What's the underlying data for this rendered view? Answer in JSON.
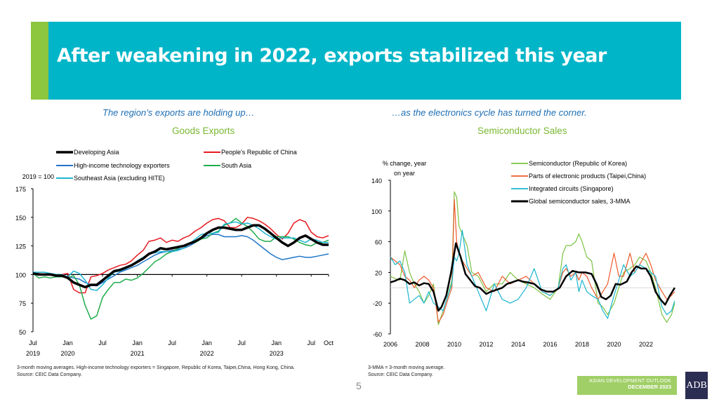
{
  "slide": {
    "title": "After weakening in 2022, exports stabilized this year",
    "page_number": "5",
    "badge": {
      "line1": "ASIAN DEVELOPMENT OUTLOOK",
      "line2": "DECEMBER 2023"
    },
    "logo": "ADB",
    "colors": {
      "title_bg": "#00b5c8",
      "accent": "#8dc63f",
      "subtitle": "#1f6fb4",
      "chart_title": "#7ab833",
      "badge_bg": "#a0cf67",
      "logo_bg": "#2b2d52"
    }
  },
  "left": {
    "subtitle": "The region’s exports are holding up…",
    "notes": [
      "3-month moving averages. High-income technology exporters = Singapore, Republic of Korea, Taipei,China, Hong Kong, China.",
      "Source: CEIC Data Company."
    ]
  },
  "right": {
    "subtitle": "…as the electronics cycle has turned the corner.",
    "notes": [
      "3-MMA = 3-month moving average.",
      "Source: CEIC Data Company."
    ]
  },
  "chart_data": [
    {
      "type": "line",
      "title": "Goods Exports",
      "ylabel": "2019 = 100",
      "xlabel": "",
      "ylim": [
        50,
        175
      ],
      "yticks": [
        "50",
        "75",
        "100",
        "125",
        "150",
        "175"
      ],
      "xticks": [
        {
          "month": 0,
          "line1": "Jul",
          "line2": "2019"
        },
        {
          "month": 6,
          "line1": "Jan",
          "line2": "2020"
        },
        {
          "month": 12,
          "line1": "Jul",
          "line2": ""
        },
        {
          "month": 18,
          "line1": "Jan",
          "line2": "2021"
        },
        {
          "month": 24,
          "line1": "Jul",
          "line2": ""
        },
        {
          "month": 30,
          "line1": "Jan",
          "line2": "2022"
        },
        {
          "month": 36,
          "line1": "Jul",
          "line2": ""
        },
        {
          "month": 42,
          "line1": "Jan",
          "line2": "2023"
        },
        {
          "month": 48,
          "line1": "Jul",
          "line2": ""
        },
        {
          "month": 51,
          "line1": "Oct",
          "line2": ""
        }
      ],
      "x_unit": "months since Jul 2019",
      "x": [
        0,
        1,
        2,
        3,
        4,
        5,
        6,
        7,
        8,
        9,
        10,
        11,
        12,
        13,
        14,
        15,
        16,
        17,
        18,
        19,
        20,
        21,
        22,
        23,
        24,
        25,
        26,
        27,
        28,
        29,
        30,
        31,
        32,
        33,
        34,
        35,
        36,
        37,
        38,
        39,
        40,
        41,
        42,
        43,
        44,
        45,
        46,
        47,
        48,
        49,
        50,
        51
      ],
      "legend": "top",
      "series": [
        {
          "name": "Developing Asia",
          "color": "#000000",
          "width": 3.5,
          "values": [
            101,
            100,
            100,
            100,
            99,
            99,
            97,
            93,
            91,
            89,
            91,
            91,
            95,
            99,
            103,
            104,
            106,
            108,
            111,
            114,
            118,
            120,
            123,
            122,
            123,
            124,
            125,
            127,
            129,
            132,
            136,
            139,
            141,
            141,
            140,
            139,
            139,
            141,
            143,
            143,
            140,
            136,
            132,
            128,
            125,
            128,
            132,
            134,
            131,
            128,
            126,
            126
          ]
        },
        {
          "name": "People's Republic of China",
          "color": "#e8191f",
          "width": 1.5,
          "values": [
            101,
            101,
            100,
            100,
            100,
            100,
            101,
            87,
            84,
            84,
            98,
            99,
            101,
            104,
            106,
            108,
            109,
            112,
            117,
            121,
            129,
            130,
            132,
            128,
            130,
            129,
            132,
            134,
            138,
            141,
            145,
            148,
            149,
            147,
            141,
            141,
            144,
            150,
            149,
            147,
            144,
            140,
            135,
            131,
            136,
            145,
            148,
            146,
            137,
            133,
            132,
            134
          ]
        },
        {
          "name": "High-income technology exporters",
          "color": "#1f75c9",
          "width": 1.5,
          "values": [
            101,
            100,
            100,
            100,
            99,
            99,
            98,
            97,
            96,
            93,
            91,
            90,
            93,
            96,
            99,
            102,
            104,
            106,
            108,
            111,
            114,
            117,
            119,
            120,
            121,
            122,
            123,
            125,
            128,
            131,
            134,
            135,
            135,
            133,
            133,
            133,
            134,
            133,
            130,
            126,
            122,
            118,
            115,
            113,
            114,
            115,
            116,
            115,
            115,
            116,
            117,
            118
          ]
        },
        {
          "name": "South Asia",
          "color": "#1fac4c",
          "width": 1.5,
          "values": [
            101,
            97,
            98,
            97,
            98,
            98,
            97,
            99,
            91,
            73,
            61,
            64,
            80,
            87,
            93,
            93,
            96,
            95,
            97,
            101,
            106,
            111,
            114,
            118,
            120,
            123,
            125,
            127,
            128,
            131,
            132,
            136,
            138,
            143,
            145,
            149,
            145,
            142,
            137,
            131,
            129,
            129,
            133,
            133,
            133,
            131,
            128,
            126,
            125,
            128,
            128,
            130
          ]
        },
        {
          "name": "Southeast Asia (excluding HITE)",
          "color": "#1fb5d0",
          "width": 1.5,
          "values": [
            102,
            102,
            102,
            101,
            100,
            100,
            98,
            103,
            101,
            95,
            87,
            86,
            91,
            97,
            102,
            103,
            105,
            108,
            112,
            115,
            118,
            119,
            120,
            120,
            120,
            121,
            123,
            127,
            131,
            135,
            136,
            136,
            137,
            144,
            145,
            146,
            144,
            145,
            143,
            140,
            136,
            133,
            131,
            132,
            132,
            132,
            130,
            128,
            131,
            130,
            128,
            128
          ]
        }
      ]
    },
    {
      "type": "line",
      "title": "Semiconductor Sales",
      "ylabel": "% change, year on year",
      "xlabel": "",
      "ylim": [
        -60,
        140
      ],
      "yticks": [
        "-60",
        "-20",
        "20",
        "60",
        "100",
        "140"
      ],
      "xticks": [
        "2006",
        "2008",
        "2010",
        "2012",
        "2014",
        "2016",
        "2018",
        "2020",
        "2022"
      ],
      "x_unit": "year",
      "legend": "top-right",
      "series": [
        {
          "name": "Semiconductor (Republic of Korea)",
          "color": "#7cc242",
          "width": 1.2,
          "x": [
            2006,
            2006.3,
            2006.6,
            2006.9,
            2007.2,
            2007.5,
            2007.8,
            2008.1,
            2008.4,
            2008.7,
            2009.0,
            2009.3,
            2009.6,
            2009.85,
            2010.0,
            2010.15,
            2010.3,
            2010.5,
            2010.8,
            2011.1,
            2011.5,
            2012.0,
            2012.5,
            2013.0,
            2013.5,
            2014.0,
            2014.5,
            2015.0,
            2015.5,
            2016.0,
            2016.5,
            2016.8,
            2017.0,
            2017.3,
            2017.6,
            2017.8,
            2018.0,
            2018.3,
            2018.6,
            2019.0,
            2019.3,
            2019.6,
            2020.0,
            2020.3,
            2020.6,
            2021.0,
            2021.3,
            2021.6,
            2022.0,
            2022.3,
            2022.6,
            2023.0,
            2023.3,
            2023.6,
            2023.8
          ],
          "values": [
            15,
            12,
            10,
            48,
            20,
            5,
            -5,
            -20,
            -10,
            5,
            -48,
            -30,
            -10,
            10,
            125,
            118,
            80,
            70,
            55,
            20,
            15,
            -5,
            5,
            5,
            20,
            10,
            5,
            0,
            -8,
            -15,
            0,
            45,
            55,
            55,
            60,
            70,
            60,
            40,
            35,
            -20,
            -25,
            -35,
            -20,
            0,
            20,
            25,
            30,
            40,
            35,
            20,
            0,
            -35,
            -45,
            -35,
            -20
          ]
        },
        {
          "name": "Parts of electronic products (Taipei,China)",
          "color": "#ee5a2b",
          "width": 1.2,
          "values": [
            40,
            35,
            30,
            15,
            10,
            0,
            10,
            15,
            10,
            0,
            -45,
            -35,
            -15,
            0,
            115,
            60,
            45,
            35,
            25,
            15,
            20,
            0,
            -5,
            15,
            5,
            10,
            15,
            5,
            -5,
            -10,
            0,
            20,
            25,
            15,
            20,
            10,
            20,
            15,
            0,
            -15,
            -5,
            5,
            45,
            15,
            15,
            45,
            20,
            30,
            45,
            30,
            10,
            -5,
            -15,
            -10,
            -5
          ],
          "x": [
            2006,
            2006.3,
            2006.6,
            2006.9,
            2007.2,
            2007.5,
            2007.8,
            2008.1,
            2008.4,
            2008.7,
            2009.0,
            2009.3,
            2009.6,
            2009.85,
            2010.0,
            2010.15,
            2010.3,
            2010.5,
            2010.8,
            2011.1,
            2011.5,
            2012.0,
            2012.5,
            2013.0,
            2013.5,
            2014.0,
            2014.5,
            2015.0,
            2015.5,
            2016.0,
            2016.5,
            2016.8,
            2017.0,
            2017.3,
            2017.6,
            2017.8,
            2018.0,
            2018.3,
            2018.6,
            2019.0,
            2019.3,
            2019.6,
            2020.0,
            2020.3,
            2020.6,
            2021.0,
            2021.3,
            2021.6,
            2022.0,
            2022.3,
            2022.6,
            2023.0,
            2023.3,
            2023.6,
            2023.8
          ]
        },
        {
          "name": "Integrated circuits (Singapore)",
          "color": "#1ab6d0",
          "width": 1.2,
          "values": [
            40,
            30,
            35,
            20,
            -20,
            -15,
            -10,
            -20,
            -5,
            -20,
            -25,
            -30,
            -10,
            5,
            40,
            35,
            45,
            75,
            30,
            15,
            -5,
            -30,
            5,
            -15,
            -20,
            -15,
            0,
            25,
            -5,
            -10,
            0,
            25,
            30,
            10,
            20,
            -5,
            10,
            -5,
            -10,
            -15,
            -30,
            -40,
            -10,
            10,
            30,
            15,
            20,
            30,
            25,
            20,
            15,
            -25,
            -35,
            -30,
            -17
          ],
          "x": [
            2006,
            2006.3,
            2006.6,
            2006.9,
            2007.2,
            2007.5,
            2007.8,
            2008.1,
            2008.4,
            2008.7,
            2009.0,
            2009.3,
            2009.6,
            2009.85,
            2010.0,
            2010.15,
            2010.3,
            2010.5,
            2010.8,
            2011.1,
            2011.5,
            2012.0,
            2012.5,
            2013.0,
            2013.5,
            2014.0,
            2014.5,
            2015.0,
            2015.5,
            2016.0,
            2016.5,
            2016.8,
            2017.0,
            2017.3,
            2017.6,
            2017.8,
            2018.0,
            2018.3,
            2018.6,
            2019.0,
            2019.3,
            2019.6,
            2020.0,
            2020.3,
            2020.6,
            2021.0,
            2021.3,
            2021.6,
            2022.0,
            2022.3,
            2022.6,
            2023.0,
            2023.3,
            2023.6,
            2023.8
          ]
        },
        {
          "name": "Global semiconductor sales, 3-MMA",
          "color": "#000000",
          "width": 2.5,
          "x": [
            2006,
            2006.3,
            2006.6,
            2006.9,
            2007.2,
            2007.5,
            2007.8,
            2008.1,
            2008.4,
            2008.7,
            2009.0,
            2009.2,
            2009.5,
            2009.8,
            2010.1,
            2010.4,
            2010.7,
            2011.0,
            2011.3,
            2011.6,
            2012.0,
            2012.3,
            2012.6,
            2013.0,
            2013.3,
            2013.6,
            2014.0,
            2014.3,
            2014.6,
            2015.0,
            2015.4,
            2015.8,
            2016.2,
            2016.6,
            2017.0,
            2017.4,
            2017.8,
            2018.2,
            2018.6,
            2018.9,
            2019.2,
            2019.5,
            2019.8,
            2020.1,
            2020.4,
            2020.8,
            2021.1,
            2021.4,
            2021.7,
            2022.0,
            2022.3,
            2022.6,
            2022.9,
            2023.2,
            2023.5,
            2023.8
          ],
          "values": [
            7,
            9,
            12,
            10,
            5,
            7,
            3,
            6,
            5,
            -5,
            -30,
            -25,
            -10,
            20,
            58,
            40,
            18,
            10,
            2,
            0,
            -8,
            -5,
            -3,
            0,
            5,
            7,
            10,
            8,
            7,
            5,
            -2,
            -5,
            -5,
            0,
            15,
            22,
            20,
            20,
            18,
            5,
            -12,
            -15,
            -10,
            5,
            4,
            8,
            20,
            28,
            25,
            25,
            15,
            -5,
            -15,
            -22,
            -10,
            0
          ]
        }
      ]
    }
  ]
}
